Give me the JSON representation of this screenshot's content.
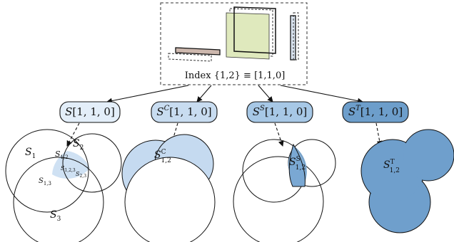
{
  "index_box": {
    "caption_text": "Index {1,2} ≡ [1,1,0]"
  },
  "nodes": [
    {
      "id": "union",
      "base": "S",
      "sup": "",
      "args": "[1, 1, 0]",
      "fill": "#e3eef9"
    },
    {
      "id": "complement",
      "base": "S",
      "sup": "C",
      "args": "[1, 1, 0]",
      "fill": "#c8dcf0"
    },
    {
      "id": "shared",
      "base": "S",
      "sup": "S",
      "args": "[1, 1, 0]",
      "fill": "#a7c8e6"
    },
    {
      "id": "total",
      "base": "S",
      "sup": "T",
      "args": "[1, 1, 0]",
      "fill": "#6d9ecb"
    }
  ],
  "venn": {
    "s1": {
      "base": "S",
      "sub": "1"
    },
    "s2": {
      "base": "S",
      "sub": "2"
    },
    "s3": {
      "base": "S",
      "sub": "3"
    },
    "s12": {
      "base": "S",
      "sub": "1,2"
    },
    "s13": {
      "base": "S",
      "sub": "1,3"
    },
    "s123": {
      "base": "S",
      "sub": "1,2,3"
    },
    "s23": {
      "base": "S",
      "sub": "2,3"
    }
  },
  "region_labels": [
    {
      "base": "S",
      "sup": "C",
      "sub": "1,2"
    },
    {
      "base": "S",
      "sup": "S",
      "sub": "1,2"
    },
    {
      "base": "S",
      "sup": "T",
      "sub": "1,2"
    }
  ],
  "colors": {
    "tan_sheet": "#cdb8ae",
    "green_sheet": "#dfe9bd",
    "blue_sheet": "#dde7f3",
    "complement_region": "#c5daf0",
    "shared_region": "#7aa8d3",
    "total_region": "#6f9fcc",
    "outline": "#111111"
  }
}
